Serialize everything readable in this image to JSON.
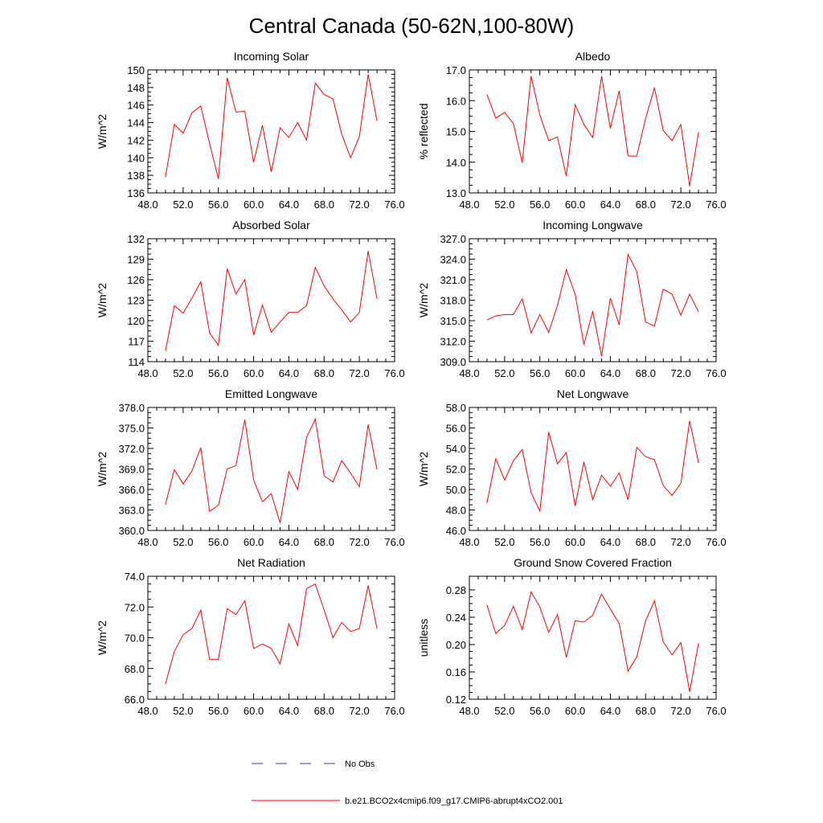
{
  "figure_title": "Central Canada (50-62N,100-80W)",
  "legend": {
    "obs_label": "No Obs",
    "model_label": "b.e21.BCO2x4cmip6.f09_g17.CMIP6-abrupt4xCO2.001",
    "obs_color": "#3333cc",
    "model_color": "#ff0000"
  },
  "chart_data": [
    {
      "type": "line",
      "title": "Incoming Solar",
      "ylabel": "W/m^2",
      "xlim": [
        48,
        76
      ],
      "ylim": [
        136,
        150
      ],
      "xticks": [
        48,
        52,
        56,
        60,
        64,
        68,
        72,
        76
      ],
      "xtick_labels": [
        "48.0",
        "52.0",
        "56.0",
        "60.0",
        "64.0",
        "68.0",
        "72.0",
        "76.0"
      ],
      "yticks": [
        136,
        138,
        140,
        142,
        144,
        146,
        148,
        150
      ],
      "ytick_labels": [
        "136",
        "138",
        "140",
        "142",
        "144",
        "146",
        "148",
        "150"
      ],
      "x": [
        50,
        51,
        52,
        53,
        54,
        55,
        56,
        57,
        58,
        59,
        60,
        61,
        62,
        63,
        64,
        65,
        66,
        67,
        68,
        69,
        70,
        71,
        72,
        73,
        74
      ],
      "series": [
        {
          "name": "b.e21.BCO2x4cmip6.f09_g17.CMIP6-abrupt4xCO2.001",
          "values": [
            137.8,
            143.8,
            142.8,
            145.1,
            145.9,
            141.6,
            137.6,
            149.1,
            145.2,
            145.3,
            139.5,
            143.7,
            138.4,
            143.4,
            142.3,
            144.0,
            142.0,
            148.5,
            147.2,
            146.7,
            142.7,
            140.0,
            142.4,
            149.5,
            144.2
          ]
        }
      ]
    },
    {
      "type": "line",
      "title": "Albedo",
      "ylabel": "% reflected",
      "xlim": [
        48,
        76
      ],
      "ylim": [
        13,
        17
      ],
      "xticks": [
        48,
        52,
        56,
        60,
        64,
        68,
        72,
        76
      ],
      "xtick_labels": [
        "48.0",
        "52.0",
        "56.0",
        "60.0",
        "64.0",
        "68.0",
        "72.0",
        "76.0"
      ],
      "yticks": [
        13,
        14,
        15,
        16,
        17
      ],
      "ytick_labels": [
        "13.0",
        "14.0",
        "15.0",
        "16.0",
        "17.0"
      ],
      "x": [
        50,
        51,
        52,
        53,
        54,
        55,
        56,
        57,
        58,
        59,
        60,
        61,
        62,
        63,
        64,
        65,
        66,
        67,
        68,
        69,
        70,
        71,
        72,
        73,
        74
      ],
      "series": [
        {
          "name": "b.e21.BCO2x4cmip6.f09_g17.CMIP6-abrupt4xCO2.001",
          "values": [
            16.2,
            15.43,
            15.62,
            15.25,
            13.98,
            16.8,
            15.53,
            14.7,
            14.82,
            13.55,
            15.87,
            15.23,
            14.8,
            16.8,
            15.1,
            16.32,
            14.2,
            14.2,
            15.42,
            16.42,
            15.03,
            14.7,
            15.23,
            13.22,
            14.98
          ]
        }
      ]
    },
    {
      "type": "line",
      "title": "Absorbed Solar",
      "ylabel": "W/m^2",
      "xlim": [
        48,
        76
      ],
      "ylim": [
        114,
        132
      ],
      "xticks": [
        48,
        52,
        56,
        60,
        64,
        68,
        72,
        76
      ],
      "xtick_labels": [
        "48.0",
        "52.0",
        "56.0",
        "60.0",
        "64.0",
        "68.0",
        "72.0",
        "76.0"
      ],
      "yticks": [
        114,
        117,
        120,
        123,
        126,
        129,
        132
      ],
      "ytick_labels": [
        "114",
        "117",
        "120",
        "123",
        "126",
        "129",
        "132"
      ],
      "x": [
        50,
        51,
        52,
        53,
        54,
        55,
        56,
        57,
        58,
        59,
        60,
        61,
        62,
        63,
        64,
        65,
        66,
        67,
        68,
        69,
        70,
        71,
        72,
        73,
        74
      ],
      "series": [
        {
          "name": "b.e21.BCO2x4cmip6.f09_g17.CMIP6-abrupt4xCO2.001",
          "values": [
            115.6,
            122.2,
            121.1,
            123.3,
            125.7,
            118.2,
            116.4,
            127.6,
            123.9,
            126.0,
            117.9,
            122.3,
            118.3,
            119.8,
            121.2,
            121.2,
            122.2,
            127.8,
            125.1,
            123.2,
            121.6,
            119.8,
            121.2,
            130.2,
            123.2
          ]
        }
      ]
    },
    {
      "type": "line",
      "title": "Incoming Longwave",
      "ylabel": "W/m^2",
      "xlim": [
        48,
        76
      ],
      "ylim": [
        309,
        327
      ],
      "xticks": [
        48,
        52,
        56,
        60,
        64,
        68,
        72,
        76
      ],
      "xtick_labels": [
        "48.0",
        "52.0",
        "56.0",
        "60.0",
        "64.0",
        "68.0",
        "72.0",
        "76.0"
      ],
      "yticks": [
        309,
        312,
        315,
        318,
        321,
        324,
        327
      ],
      "ytick_labels": [
        "309.0",
        "312.0",
        "315.0",
        "318.0",
        "321.0",
        "324.0",
        "327.0"
      ],
      "x": [
        50,
        51,
        52,
        53,
        54,
        55,
        56,
        57,
        58,
        59,
        60,
        61,
        62,
        63,
        64,
        65,
        66,
        67,
        68,
        69,
        70,
        71,
        72,
        73,
        74
      ],
      "series": [
        {
          "name": "b.e21.BCO2x4cmip6.f09_g17.CMIP6-abrupt4xCO2.001",
          "values": [
            315.1,
            315.7,
            315.9,
            315.9,
            318.2,
            313.2,
            315.9,
            313.3,
            317.2,
            322.5,
            318.9,
            311.5,
            316.4,
            309.8,
            318.3,
            314.4,
            324.7,
            322.2,
            314.8,
            314.2,
            319.6,
            318.9,
            315.8,
            318.9,
            316.3
          ]
        }
      ]
    },
    {
      "type": "line",
      "title": "Emitted Longwave",
      "ylabel": "W/m^2",
      "xlim": [
        48,
        76
      ],
      "ylim": [
        360,
        378
      ],
      "xticks": [
        48,
        52,
        56,
        60,
        64,
        68,
        72,
        76
      ],
      "xtick_labels": [
        "48.0",
        "52.0",
        "56.0",
        "60.0",
        "64.0",
        "68.0",
        "72.0",
        "76.0"
      ],
      "yticks": [
        360,
        363,
        366,
        369,
        372,
        375,
        378
      ],
      "ytick_labels": [
        "360.0",
        "363.0",
        "366.0",
        "369.0",
        "372.0",
        "375.0",
        "378.0"
      ],
      "x": [
        50,
        51,
        52,
        53,
        54,
        55,
        56,
        57,
        58,
        59,
        60,
        61,
        62,
        63,
        64,
        65,
        66,
        67,
        68,
        69,
        70,
        71,
        72,
        73,
        74
      ],
      "series": [
        {
          "name": "b.e21.BCO2x4cmip6.f09_g17.CMIP6-abrupt4xCO2.001",
          "values": [
            363.8,
            368.9,
            366.8,
            368.7,
            372.1,
            362.8,
            363.7,
            369.0,
            369.5,
            376.2,
            367.4,
            364.2,
            365.4,
            361.1,
            368.6,
            366.0,
            373.6,
            376.3,
            368.0,
            367.1,
            370.2,
            368.4,
            366.4,
            375.5,
            368.9
          ]
        }
      ]
    },
    {
      "type": "line",
      "title": "Net Longwave",
      "ylabel": "W/m^2",
      "xlim": [
        48,
        76
      ],
      "ylim": [
        46,
        58
      ],
      "xticks": [
        48,
        52,
        56,
        60,
        64,
        68,
        72,
        76
      ],
      "xtick_labels": [
        "48.0",
        "52.0",
        "56.0",
        "60.0",
        "64.0",
        "68.0",
        "72.0",
        "76.0"
      ],
      "yticks": [
        46,
        48,
        50,
        52,
        54,
        56,
        58
      ],
      "ytick_labels": [
        "46.0",
        "48.0",
        "50.0",
        "52.0",
        "54.0",
        "56.0",
        "58.0"
      ],
      "x": [
        50,
        51,
        52,
        53,
        54,
        55,
        56,
        57,
        58,
        59,
        60,
        61,
        62,
        63,
        64,
        65,
        66,
        67,
        68,
        69,
        70,
        71,
        72,
        73,
        74
      ],
      "series": [
        {
          "name": "b.e21.BCO2x4cmip6.f09_g17.CMIP6-abrupt4xCO2.001",
          "values": [
            48.7,
            53.0,
            50.9,
            52.8,
            53.9,
            49.7,
            47.9,
            55.6,
            52.5,
            53.6,
            48.4,
            52.7,
            49.0,
            51.4,
            50.3,
            51.6,
            49.0,
            54.1,
            53.2,
            52.9,
            50.4,
            49.4,
            50.6,
            56.7,
            52.6
          ]
        }
      ]
    },
    {
      "type": "line",
      "title": "Net Radiation",
      "ylabel": "W/m^2",
      "xlim": [
        48,
        76
      ],
      "ylim": [
        66,
        74
      ],
      "xticks": [
        48,
        52,
        56,
        60,
        64,
        68,
        72,
        76
      ],
      "xtick_labels": [
        "48.0",
        "52.0",
        "56.0",
        "60.0",
        "64.0",
        "68.0",
        "72.0",
        "76.0"
      ],
      "yticks": [
        66,
        68,
        70,
        72,
        74
      ],
      "ytick_labels": [
        "66.0",
        "68.0",
        "70.0",
        "72.0",
        "74.0"
      ],
      "x": [
        50,
        51,
        52,
        53,
        54,
        55,
        56,
        57,
        58,
        59,
        60,
        61,
        62,
        63,
        64,
        65,
        66,
        67,
        68,
        69,
        70,
        71,
        72,
        73,
        74
      ],
      "series": [
        {
          "name": "b.e21.BCO2x4cmip6.f09_g17.CMIP6-abrupt4xCO2.001",
          "values": [
            67.0,
            69.1,
            70.2,
            70.6,
            71.8,
            68.6,
            68.6,
            71.9,
            71.5,
            72.4,
            69.3,
            69.6,
            69.3,
            68.3,
            70.9,
            69.5,
            73.2,
            73.5,
            71.8,
            70.0,
            71.0,
            70.4,
            70.6,
            73.4,
            70.6
          ]
        }
      ]
    },
    {
      "type": "line",
      "title": "Ground Snow Covered Fraction",
      "ylabel": "unitless",
      "xlim": [
        48,
        76
      ],
      "ylim": [
        0.12,
        0.3
      ],
      "xticks": [
        48,
        52,
        56,
        60,
        64,
        68,
        72,
        76
      ],
      "xtick_labels": [
        "48.0",
        "52.0",
        "56.0",
        "60.0",
        "64.0",
        "68.0",
        "72.0",
        "76.0"
      ],
      "yticks": [
        0.12,
        0.16,
        0.2,
        0.24,
        0.28
      ],
      "ytick_labels": [
        "0.12",
        "0.16",
        "0.20",
        "0.24",
        "0.28"
      ],
      "x": [
        50,
        51,
        52,
        53,
        54,
        55,
        56,
        57,
        58,
        59,
        60,
        61,
        62,
        63,
        64,
        65,
        66,
        67,
        68,
        69,
        70,
        71,
        72,
        73,
        74
      ],
      "series": [
        {
          "name": "b.e21.BCO2x4cmip6.f09_g17.CMIP6-abrupt4xCO2.001",
          "values": [
            0.258,
            0.216,
            0.228,
            0.256,
            0.222,
            0.277,
            0.255,
            0.218,
            0.244,
            0.181,
            0.235,
            0.233,
            0.243,
            0.274,
            0.252,
            0.231,
            0.161,
            0.182,
            0.235,
            0.264,
            0.204,
            0.185,
            0.203,
            0.131,
            0.202
          ]
        }
      ]
    }
  ]
}
